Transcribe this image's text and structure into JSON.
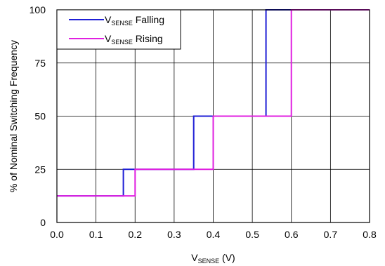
{
  "chart_data": {
    "type": "line",
    "xlabel": {
      "main": "V",
      "sub": "SENSE",
      "unit": " (V)"
    },
    "ylabel": "% of Nominal Switching Frequency",
    "xlim": [
      0,
      0.8
    ],
    "ylim": [
      0,
      100
    ],
    "x_ticks": [
      "0.0",
      "0.1",
      "0.2",
      "0.3",
      "0.4",
      "0.5",
      "0.6",
      "0.7",
      "0.8"
    ],
    "y_ticks": [
      "0",
      "25",
      "50",
      "75",
      "100"
    ],
    "grid": true,
    "legend_position": "top-left",
    "series": [
      {
        "name": {
          "main": "V",
          "sub": "SENSE",
          "rest": " Falling"
        },
        "color": "#1f1fd6",
        "step_points": [
          [
            0,
            12.5
          ],
          [
            0.17,
            12.5
          ],
          [
            0.17,
            25
          ],
          [
            0.35,
            25
          ],
          [
            0.35,
            50
          ],
          [
            0.535,
            50
          ],
          [
            0.535,
            100
          ],
          [
            0.8,
            100
          ]
        ]
      },
      {
        "name": {
          "main": "V",
          "sub": "SENSE",
          "rest": " Rising"
        },
        "color": "#e020e0",
        "step_points": [
          [
            0,
            12.5
          ],
          [
            0.2,
            12.5
          ],
          [
            0.2,
            25
          ],
          [
            0.4,
            25
          ],
          [
            0.4,
            50
          ],
          [
            0.6,
            50
          ],
          [
            0.6,
            100
          ],
          [
            0.8,
            100
          ]
        ]
      }
    ]
  }
}
